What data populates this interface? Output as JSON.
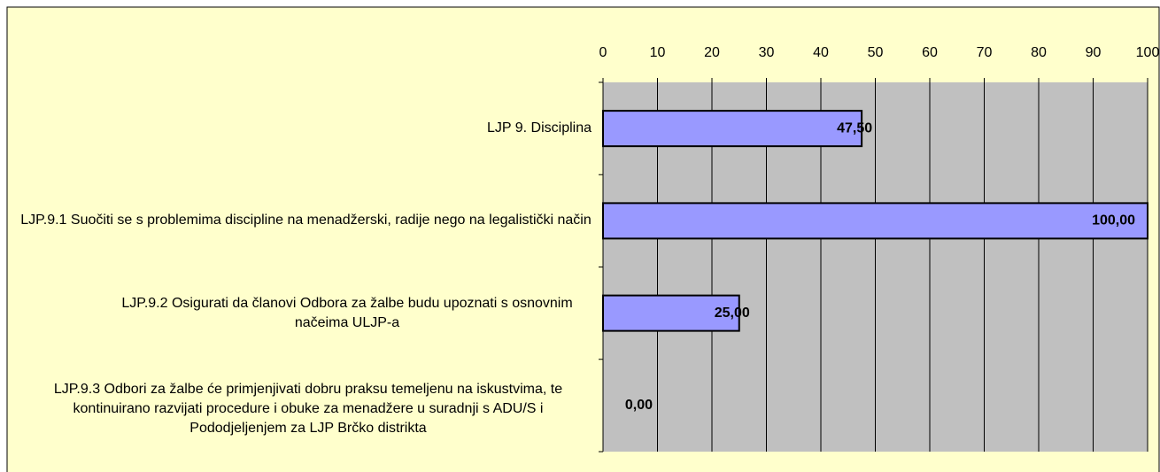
{
  "chart_data": {
    "type": "bar",
    "orientation": "horizontal",
    "categories": [
      "LJP 9. Disciplina",
      "LJP.9.1 Suočiti se s problemima discipline na menadžerski, radije nego na legalistički način",
      "LJP.9.2 Osigurati da članovi Odbora za žalbe budu upoznati s osnovnim načeima ULJP-a",
      "LJP.9.3 Odbori za žalbe će primjenjivati dobru praksu temeljenu na iskustvima, te kontinuirano razvijati procedure i obuke za menadžere u suradnji s ADU/S i Pododjeljenjem za LJP Brčko distrikta"
    ],
    "values": [
      47.5,
      100,
      25,
      0
    ],
    "value_labels": [
      "47,50",
      "100,00",
      "25,00",
      "0,00"
    ],
    "color": "#9999ff",
    "xlim": [
      0,
      100
    ],
    "xticks": [
      0,
      10,
      20,
      30,
      40,
      50,
      60,
      70,
      80,
      90,
      100
    ],
    "grid": true
  }
}
